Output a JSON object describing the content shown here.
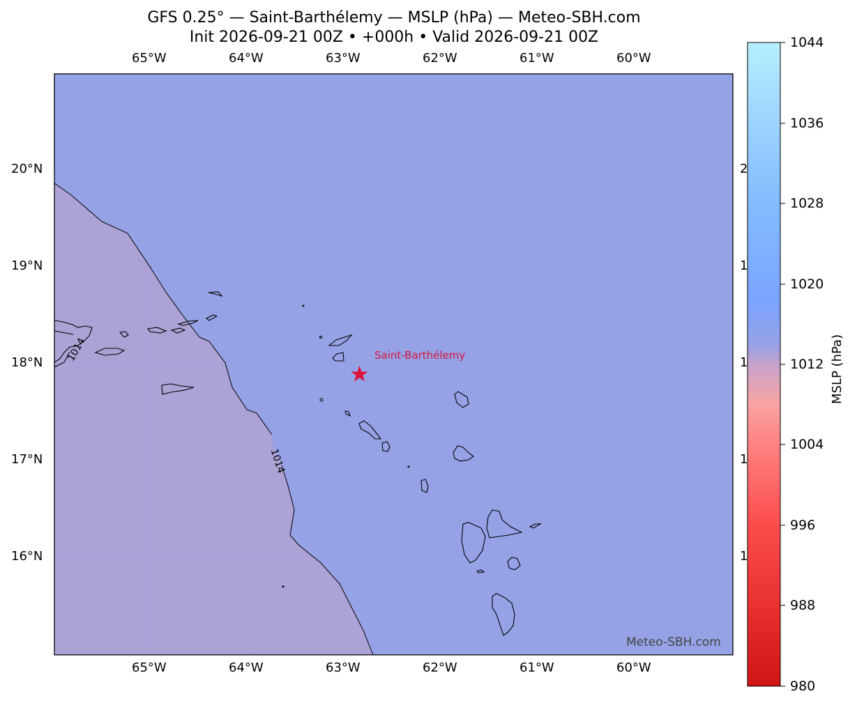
{
  "title": {
    "line1": "GFS 0.25° — Saint-Barthélemy — MSLP (hPa) — Meteo-SBH.com",
    "line2": "Init 2026-09-21 00Z • +000h • Valid 2026-09-21 00Z"
  },
  "map": {
    "lon_labels": [
      "65°W",
      "64°W",
      "63°W",
      "62°W",
      "61°W",
      "60°W"
    ],
    "lat_labels": [
      "20°N",
      "19°N",
      "18°N",
      "17°N",
      "16°N"
    ],
    "right_lat_label_fragments": [
      "2",
      "1",
      "1",
      "1",
      "1"
    ],
    "contour_labels": [
      "1014",
      "1014"
    ],
    "location": {
      "name": "Saint-Barthélemy",
      "color": "#dc143c"
    },
    "watermark": "Meteo-SBH.com",
    "colors": {
      "ocean_field": "#96a2e6",
      "land_field_low": "#aca2d6",
      "coast": "#000000"
    }
  },
  "colorbar": {
    "label": "MSLP (hPa)",
    "ticks": [
      "1044",
      "1036",
      "1028",
      "1020",
      "1012",
      "1004",
      "996",
      "988",
      "980"
    ],
    "min": 980,
    "max": 1044
  }
}
